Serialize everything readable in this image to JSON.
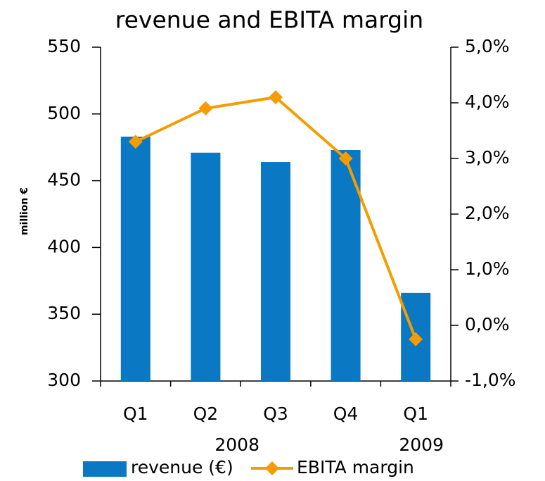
{
  "chart_data": {
    "type": "bar_line",
    "title": "revenue and EBITA margin",
    "y_label": "million €",
    "categories": [
      "Q1",
      "Q2",
      "Q3",
      "Q4",
      "Q1"
    ],
    "category_groups": [
      "2008",
      "2009"
    ],
    "series": [
      {
        "name": "revenue (€)",
        "type": "bar",
        "color": "#0a78c2",
        "values": [
          483,
          471,
          464,
          473,
          366
        ]
      },
      {
        "name": "EBITA margin",
        "type": "line",
        "axis": "y2",
        "color": "#f59c00",
        "values": [
          3.3,
          3.9,
          4.1,
          3.0,
          -0.25
        ]
      }
    ],
    "ylim": [
      300,
      550
    ],
    "yticks": [
      300,
      350,
      400,
      450,
      500,
      550
    ],
    "y2lim": [
      -1,
      5
    ],
    "y2ticks": [
      {
        "value": -1,
        "label": "-1,0%"
      },
      {
        "value": 0,
        "label": "0,0%"
      },
      {
        "value": 1,
        "label": "1,0%"
      },
      {
        "value": 2,
        "label": "2,0%"
      },
      {
        "value": 3,
        "label": "3,0%"
      },
      {
        "value": 4,
        "label": "4,0%"
      },
      {
        "value": 5,
        "label": "5,0%"
      }
    ],
    "grid": false,
    "legend": "bottom"
  }
}
